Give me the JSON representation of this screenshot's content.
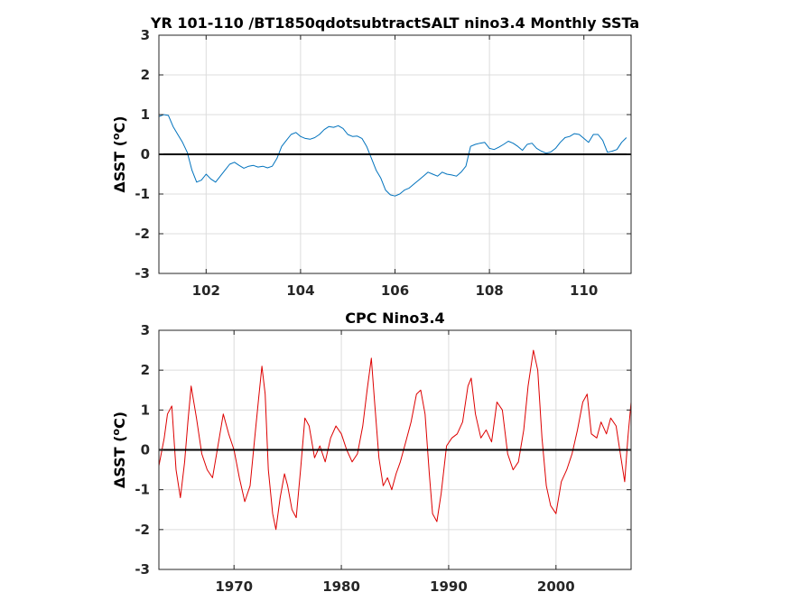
{
  "chart_data": [
    {
      "type": "line",
      "title": "YR 101-110 /BT1850qdotsubtractSALT nino3.4 Monthly SSTa",
      "ylabel_prefix": "ΔSST (",
      "ylabel_degree": "o",
      "ylabel_suffix": "C)",
      "xlim": [
        101,
        111
      ],
      "ylim": [
        -3,
        3
      ],
      "xticks": [
        102,
        104,
        106,
        108,
        110
      ],
      "yticks": [
        -3,
        -2,
        -1,
        0,
        1,
        2,
        3
      ],
      "grid": true,
      "color": "#0072bd",
      "reference_line": 0,
      "x": [
        101.0,
        101.1,
        101.2,
        101.3,
        101.4,
        101.5,
        101.6,
        101.7,
        101.8,
        101.9,
        102.0,
        102.1,
        102.2,
        102.3,
        102.4,
        102.5,
        102.6,
        102.7,
        102.8,
        102.9,
        103.0,
        103.1,
        103.2,
        103.3,
        103.4,
        103.5,
        103.6,
        103.7,
        103.8,
        103.9,
        104.0,
        104.1,
        104.2,
        104.3,
        104.4,
        104.5,
        104.6,
        104.7,
        104.8,
        104.9,
        105.0,
        105.1,
        105.2,
        105.3,
        105.4,
        105.5,
        105.6,
        105.7,
        105.8,
        105.9,
        106.0,
        106.1,
        106.2,
        106.3,
        106.4,
        106.5,
        106.6,
        106.7,
        106.8,
        106.9,
        107.0,
        107.1,
        107.2,
        107.3,
        107.4,
        107.5,
        107.6,
        107.7,
        107.8,
        107.9,
        108.0,
        108.1,
        108.2,
        108.3,
        108.4,
        108.5,
        108.6,
        108.7,
        108.8,
        108.9,
        109.0,
        109.1,
        109.2,
        109.3,
        109.4,
        109.5,
        109.6,
        109.7,
        109.8,
        109.9,
        110.0,
        110.1,
        110.2,
        110.3,
        110.4,
        110.5,
        110.6,
        110.7,
        110.8,
        110.9
      ],
      "y": [
        0.95,
        1.0,
        0.98,
        0.7,
        0.5,
        0.3,
        0.05,
        -0.4,
        -0.7,
        -0.65,
        -0.5,
        -0.62,
        -0.7,
        -0.55,
        -0.4,
        -0.25,
        -0.2,
        -0.28,
        -0.35,
        -0.3,
        -0.28,
        -0.32,
        -0.3,
        -0.34,
        -0.3,
        -0.1,
        0.2,
        0.35,
        0.5,
        0.55,
        0.45,
        0.4,
        0.38,
        0.42,
        0.5,
        0.62,
        0.7,
        0.68,
        0.72,
        0.65,
        0.5,
        0.45,
        0.46,
        0.4,
        0.2,
        -0.1,
        -0.4,
        -0.6,
        -0.9,
        -1.02,
        -1.05,
        -1.0,
        -0.9,
        -0.85,
        -0.75,
        -0.65,
        -0.55,
        -0.45,
        -0.5,
        -0.55,
        -0.45,
        -0.5,
        -0.52,
        -0.55,
        -0.45,
        -0.3,
        0.2,
        0.25,
        0.28,
        0.3,
        0.15,
        0.12,
        0.18,
        0.25,
        0.33,
        0.28,
        0.2,
        0.1,
        0.25,
        0.28,
        0.15,
        0.08,
        0.03,
        0.06,
        0.15,
        0.3,
        0.42,
        0.45,
        0.52,
        0.5,
        0.4,
        0.3,
        0.5,
        0.5,
        0.35,
        0.05,
        0.08,
        0.12,
        0.3,
        0.42
      ]
    },
    {
      "type": "line",
      "title": "CPC Nino3.4",
      "ylabel_prefix": "ΔSST (",
      "ylabel_degree": "o",
      "ylabel_suffix": "C)",
      "xlim": [
        1963,
        2007
      ],
      "ylim": [
        -3,
        3
      ],
      "xticks": [
        1970,
        1980,
        1990,
        2000
      ],
      "yticks": [
        -3,
        -2,
        -1,
        0,
        1,
        2,
        3
      ],
      "grid": true,
      "color": "#dd0000",
      "reference_line": 0,
      "x": [
        1963.0,
        1963.5,
        1963.8,
        1964.2,
        1964.6,
        1965.0,
        1965.4,
        1965.7,
        1966.0,
        1966.5,
        1967.0,
        1967.5,
        1968.0,
        1968.5,
        1969.0,
        1969.5,
        1970.0,
        1970.5,
        1971.0,
        1971.5,
        1972.0,
        1972.3,
        1972.6,
        1972.9,
        1973.2,
        1973.6,
        1973.9,
        1974.3,
        1974.7,
        1975.0,
        1975.4,
        1975.8,
        1976.2,
        1976.6,
        1977.0,
        1977.5,
        1978.0,
        1978.5,
        1979.0,
        1979.5,
        1980.0,
        1980.5,
        1981.0,
        1981.5,
        1982.0,
        1982.4,
        1982.8,
        1983.1,
        1983.5,
        1983.9,
        1984.3,
        1984.7,
        1985.1,
        1985.5,
        1986.0,
        1986.5,
        1987.0,
        1987.4,
        1987.8,
        1988.2,
        1988.5,
        1988.9,
        1989.3,
        1989.8,
        1990.3,
        1990.8,
        1991.3,
        1991.8,
        1992.1,
        1992.5,
        1993.0,
        1993.5,
        1994.0,
        1994.5,
        1995.0,
        1995.5,
        1996.0,
        1996.5,
        1997.0,
        1997.4,
        1997.9,
        1998.3,
        1998.7,
        1999.1,
        1999.5,
        2000.0,
        2000.5,
        2001.0,
        2001.5,
        2002.0,
        2002.5,
        2002.9,
        2003.3,
        2003.8,
        2004.2,
        2004.7,
        2005.1,
        2005.6,
        2006.0,
        2006.4,
        2006.7,
        2007.0
      ],
      "y": [
        -0.4,
        0.3,
        0.9,
        1.1,
        -0.5,
        -1.2,
        -0.3,
        0.7,
        1.6,
        0.8,
        -0.1,
        -0.5,
        -0.7,
        0.1,
        0.9,
        0.4,
        0.0,
        -0.7,
        -1.3,
        -0.9,
        0.5,
        1.3,
        2.1,
        1.4,
        -0.5,
        -1.6,
        -2.0,
        -1.2,
        -0.6,
        -0.9,
        -1.5,
        -1.7,
        -0.5,
        0.8,
        0.6,
        -0.2,
        0.1,
        -0.3,
        0.3,
        0.6,
        0.4,
        0.0,
        -0.3,
        -0.1,
        0.6,
        1.5,
        2.3,
        1.2,
        -0.2,
        -0.9,
        -0.7,
        -1.0,
        -0.6,
        -0.3,
        0.2,
        0.7,
        1.4,
        1.5,
        0.9,
        -0.6,
        -1.6,
        -1.8,
        -1.1,
        0.1,
        0.3,
        0.4,
        0.7,
        1.6,
        1.8,
        0.9,
        0.3,
        0.5,
        0.2,
        1.2,
        1.0,
        -0.1,
        -0.5,
        -0.3,
        0.5,
        1.6,
        2.5,
        2.0,
        0.3,
        -0.9,
        -1.4,
        -1.6,
        -0.8,
        -0.5,
        -0.1,
        0.5,
        1.2,
        1.4,
        0.4,
        0.3,
        0.7,
        0.4,
        0.8,
        0.6,
        -0.1,
        -0.8,
        0.3,
        1.2
      ]
    }
  ]
}
